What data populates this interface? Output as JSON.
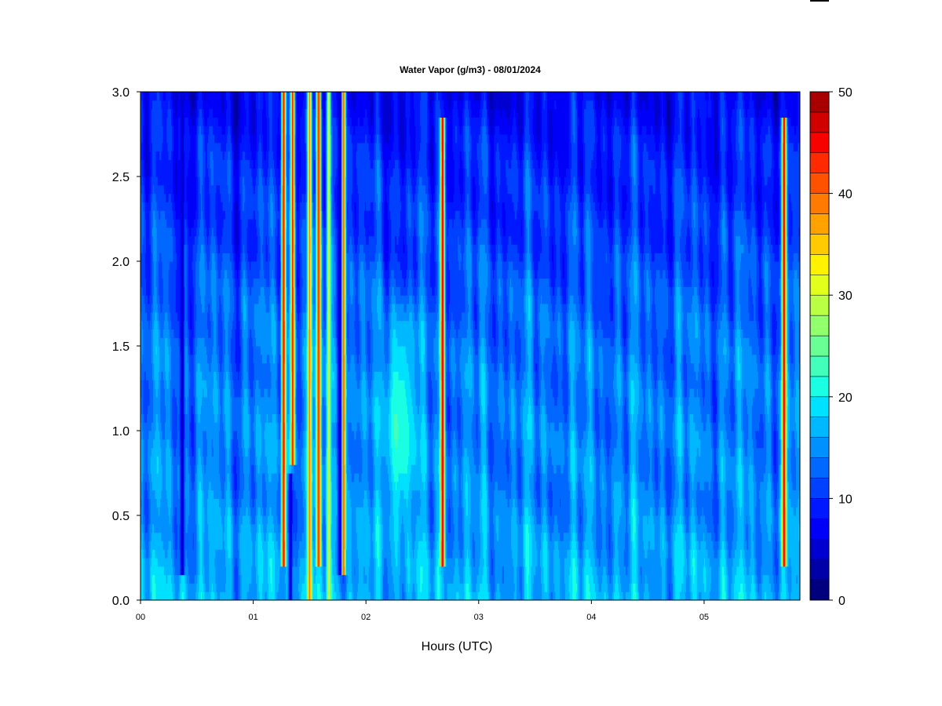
{
  "chart_data": {
    "type": "heatmap",
    "title": "Water Vapor (g/m3) - 08/01/2024",
    "xlabel": "Hours (UTC)",
    "ylabel": "",
    "xlim": [
      0,
      5.85
    ],
    "ylim": [
      0,
      3.0
    ],
    "x_ticks": [
      0,
      1,
      2,
      3,
      4,
      5
    ],
    "x_tick_labels": [
      "00",
      "01",
      "02",
      "03",
      "04",
      "05"
    ],
    "y_ticks": [
      0,
      0.5,
      1.0,
      1.5,
      2.0,
      2.5,
      3.0
    ],
    "y_tick_labels": [
      "0.0",
      "0.5",
      "1.0",
      "1.5",
      "2.0",
      "2.5",
      "3.0"
    ],
    "colorbar": {
      "min": 0,
      "max": 50,
      "levels": 25,
      "ticks": [
        0,
        10,
        20,
        30,
        40,
        50
      ],
      "tick_labels": [
        "0",
        "10",
        "20",
        "30",
        "40",
        "50"
      ],
      "colors": [
        "#00007f",
        "#0000a8",
        "#0000d0",
        "#0000f8",
        "#0018ff",
        "#0040ff",
        "#0068ff",
        "#0090ff",
        "#00b8ff",
        "#00e0ff",
        "#1affe4",
        "#42ffbc",
        "#6aff94",
        "#92ff6c",
        "#baff44",
        "#e2ff1c",
        "#fff200",
        "#ffca00",
        "#ffa200",
        "#ff7a00",
        "#ff5200",
        "#ff2a00",
        "#f80200",
        "#d00000",
        "#a80000"
      ]
    },
    "vertical_profile": {
      "heights": [
        0.0,
        0.3,
        0.6,
        0.9,
        1.2,
        1.5,
        1.8,
        2.1,
        2.4,
        2.7,
        3.0
      ],
      "values": [
        17,
        16,
        14.5,
        14.5,
        14,
        13.5,
        12.5,
        11,
        10,
        9,
        7
      ]
    },
    "features": [
      {
        "kind": "saturated_column",
        "x": 1.27,
        "value": 45,
        "from": 0.2,
        "to": 3.0
      },
      {
        "kind": "saturated_column",
        "x": 1.35,
        "value": 43,
        "from": 0.8,
        "to": 3.0
      },
      {
        "kind": "saturated_column",
        "x": 1.5,
        "value": 38,
        "from": 0.0,
        "to": 3.0
      },
      {
        "kind": "saturated_column",
        "x": 1.58,
        "value": 44,
        "from": 0.2,
        "to": 3.0
      },
      {
        "kind": "saturated_column",
        "x": 1.67,
        "value": 30,
        "from": 0.0,
        "to": 3.0
      },
      {
        "kind": "saturated_column",
        "x": 1.8,
        "value": 45,
        "from": 0.15,
        "to": 3.0
      },
      {
        "kind": "saturated_column",
        "x": 2.68,
        "value": 46,
        "from": 0.2,
        "to": 2.85
      },
      {
        "kind": "saturated_column",
        "x": 5.71,
        "value": 46,
        "from": 0.2,
        "to": 2.85
      },
      {
        "kind": "dry_column",
        "x": 0.37,
        "value": 4,
        "from": 0.15,
        "to": 3.0
      },
      {
        "kind": "dry_column",
        "x": 1.33,
        "value": 5,
        "from": 0.0,
        "to": 0.75
      },
      {
        "kind": "dry_column",
        "x": 1.77,
        "value": 5,
        "from": 0.15,
        "to": 3.0
      },
      {
        "kind": "moist_plume",
        "x": 2.3,
        "value": 24,
        "from": 0.3,
        "to": 1.8
      }
    ]
  }
}
